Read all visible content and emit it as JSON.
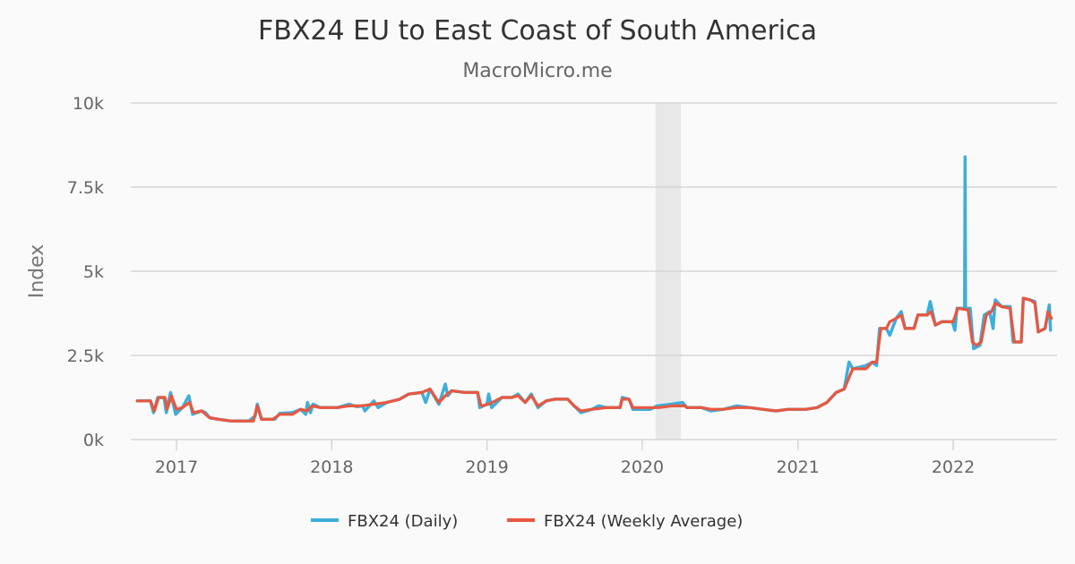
{
  "chart_data": {
    "type": "line",
    "title": "FBX24 EU to East Coast of South America",
    "subtitle": "MacroMicro.me",
    "xlabel": "",
    "ylabel": "Index",
    "ylim": [
      0,
      10000
    ],
    "xlim": [
      "2016-09-20",
      "2022-09-20"
    ],
    "yticks": [
      0,
      2500,
      5000,
      7500,
      10000
    ],
    "ytick_labels": [
      "0k",
      "2.5k",
      "5k",
      "7.5k",
      "10k"
    ],
    "xticks": [
      "2017-01-01",
      "2018-01-01",
      "2019-01-01",
      "2020-01-01",
      "2021-01-01",
      "2022-01-01"
    ],
    "xtick_labels": [
      "2017",
      "2018",
      "2019",
      "2020",
      "2021",
      "2022"
    ],
    "grid": "horizontal",
    "legend_position": "bottom",
    "shaded_period": [
      "2020-02-01",
      "2020-04-01"
    ],
    "colors": {
      "daily": "#3eaedb",
      "weekly": "#e9573f",
      "shade": "#e8e8e8",
      "grid": "#d6d6d6"
    },
    "series": [
      {
        "name": "FBX24 (Daily)",
        "points": [
          [
            "2016-10-01",
            1150
          ],
          [
            "2016-11-01",
            1150
          ],
          [
            "2016-11-08",
            800
          ],
          [
            "2016-11-18",
            1250
          ],
          [
            "2016-12-03",
            1250
          ],
          [
            "2016-12-08",
            800
          ],
          [
            "2016-12-18",
            1400
          ],
          [
            "2016-12-30",
            750
          ],
          [
            "2017-01-15",
            950
          ],
          [
            "2017-01-30",
            1300
          ],
          [
            "2017-02-08",
            750
          ],
          [
            "2017-03-01",
            850
          ],
          [
            "2017-03-10",
            800
          ],
          [
            "2017-03-20",
            650
          ],
          [
            "2017-04-10",
            600
          ],
          [
            "2017-05-10",
            550
          ],
          [
            "2017-06-20",
            550
          ],
          [
            "2017-07-05",
            700
          ],
          [
            "2017-07-10",
            1050
          ],
          [
            "2017-07-20",
            600
          ],
          [
            "2017-08-20",
            600
          ],
          [
            "2017-09-01",
            780
          ],
          [
            "2017-10-01",
            800
          ],
          [
            "2017-10-20",
            900
          ],
          [
            "2017-11-01",
            750
          ],
          [
            "2017-11-05",
            1100
          ],
          [
            "2017-11-12",
            800
          ],
          [
            "2017-11-18",
            1050
          ],
          [
            "2017-12-05",
            950
          ],
          [
            "2018-01-15",
            950
          ],
          [
            "2018-02-10",
            1050
          ],
          [
            "2018-03-01",
            980
          ],
          [
            "2018-03-15",
            1000
          ],
          [
            "2018-03-20",
            850
          ],
          [
            "2018-04-10",
            1150
          ],
          [
            "2018-04-20",
            950
          ],
          [
            "2018-05-10",
            1100
          ],
          [
            "2018-06-10",
            1200
          ],
          [
            "2018-07-01",
            1350
          ],
          [
            "2018-08-01",
            1400
          ],
          [
            "2018-08-10",
            1100
          ],
          [
            "2018-08-20",
            1500
          ],
          [
            "2018-09-10",
            1050
          ],
          [
            "2018-09-25",
            1650
          ],
          [
            "2018-10-01",
            1300
          ],
          [
            "2018-10-10",
            1450
          ],
          [
            "2018-11-10",
            1400
          ],
          [
            "2018-12-10",
            1400
          ],
          [
            "2018-12-15",
            950
          ],
          [
            "2019-01-01",
            1050
          ],
          [
            "2019-01-05",
            1350
          ],
          [
            "2019-01-12",
            950
          ],
          [
            "2019-02-05",
            1250
          ],
          [
            "2019-03-01",
            1250
          ],
          [
            "2019-03-15",
            1350
          ],
          [
            "2019-04-01",
            1100
          ],
          [
            "2019-04-15",
            1350
          ],
          [
            "2019-05-01",
            950
          ],
          [
            "2019-05-20",
            1150
          ],
          [
            "2019-06-10",
            1200
          ],
          [
            "2019-07-10",
            1200
          ],
          [
            "2019-07-25",
            1000
          ],
          [
            "2019-08-10",
            800
          ],
          [
            "2019-09-05",
            900
          ],
          [
            "2019-09-20",
            1000
          ],
          [
            "2019-10-10",
            950
          ],
          [
            "2019-11-10",
            950
          ],
          [
            "2019-11-15",
            1250
          ],
          [
            "2019-12-01",
            1200
          ],
          [
            "2019-12-10",
            900
          ],
          [
            "2020-01-20",
            900
          ],
          [
            "2020-02-05",
            1000
          ],
          [
            "2020-03-10",
            1050
          ],
          [
            "2020-04-05",
            1100
          ],
          [
            "2020-04-15",
            950
          ],
          [
            "2020-05-20",
            950
          ],
          [
            "2020-06-10",
            850
          ],
          [
            "2020-07-10",
            900
          ],
          [
            "2020-08-10",
            1000
          ],
          [
            "2020-09-10",
            950
          ],
          [
            "2020-10-10",
            900
          ],
          [
            "2020-11-10",
            850
          ],
          [
            "2020-12-10",
            900
          ],
          [
            "2021-01-20",
            900
          ],
          [
            "2021-02-15",
            950
          ],
          [
            "2021-03-10",
            1100
          ],
          [
            "2021-04-01",
            1400
          ],
          [
            "2021-04-20",
            1500
          ],
          [
            "2021-05-01",
            2300
          ],
          [
            "2021-05-10",
            2100
          ],
          [
            "2021-06-10",
            2200
          ],
          [
            "2021-06-25",
            2300
          ],
          [
            "2021-07-05",
            2200
          ],
          [
            "2021-07-12",
            3300
          ],
          [
            "2021-07-28",
            3300
          ],
          [
            "2021-08-05",
            3100
          ],
          [
            "2021-08-20",
            3600
          ],
          [
            "2021-09-01",
            3800
          ],
          [
            "2021-09-10",
            3300
          ],
          [
            "2021-10-01",
            3300
          ],
          [
            "2021-10-10",
            3700
          ],
          [
            "2021-11-01",
            3700
          ],
          [
            "2021-11-08",
            4100
          ],
          [
            "2021-11-20",
            3400
          ],
          [
            "2021-12-05",
            3500
          ],
          [
            "2021-12-30",
            3500
          ],
          [
            "2022-01-05",
            3250
          ],
          [
            "2022-01-10",
            3900
          ],
          [
            "2022-01-28",
            3900
          ],
          [
            "2022-01-29",
            8400
          ],
          [
            "2022-01-30",
            3900
          ],
          [
            "2022-02-10",
            3900
          ],
          [
            "2022-02-18",
            2700
          ],
          [
            "2022-03-05",
            2800
          ],
          [
            "2022-03-15",
            3700
          ],
          [
            "2022-03-28",
            3800
          ],
          [
            "2022-04-05",
            3300
          ],
          [
            "2022-04-10",
            4150
          ],
          [
            "2022-04-25",
            3950
          ],
          [
            "2022-05-15",
            3950
          ],
          [
            "2022-05-22",
            2900
          ],
          [
            "2022-06-10",
            2900
          ],
          [
            "2022-06-15",
            4200
          ],
          [
            "2022-07-01",
            4150
          ],
          [
            "2022-07-12",
            4100
          ],
          [
            "2022-07-20",
            3200
          ],
          [
            "2022-08-05",
            3300
          ],
          [
            "2022-08-15",
            4000
          ],
          [
            "2022-08-18",
            3250
          ]
        ]
      },
      {
        "name": "FBX24 (Weekly Average)",
        "points": [
          [
            "2016-10-01",
            1150
          ],
          [
            "2016-11-01",
            1150
          ],
          [
            "2016-11-10",
            850
          ],
          [
            "2016-11-20",
            1250
          ],
          [
            "2016-12-05",
            1250
          ],
          [
            "2016-12-10",
            900
          ],
          [
            "2016-12-20",
            1300
          ],
          [
            "2017-01-01",
            900
          ],
          [
            "2017-01-15",
            950
          ],
          [
            "2017-02-01",
            1100
          ],
          [
            "2017-02-10",
            800
          ],
          [
            "2017-03-01",
            850
          ],
          [
            "2017-03-20",
            650
          ],
          [
            "2017-04-10",
            600
          ],
          [
            "2017-05-10",
            550
          ],
          [
            "2017-06-20",
            550
          ],
          [
            "2017-07-01",
            550
          ],
          [
            "2017-07-10",
            1000
          ],
          [
            "2017-07-20",
            600
          ],
          [
            "2017-08-15",
            600
          ],
          [
            "2017-09-01",
            750
          ],
          [
            "2017-10-01",
            750
          ],
          [
            "2017-10-20",
            900
          ],
          [
            "2017-11-05",
            850
          ],
          [
            "2017-11-15",
            1000
          ],
          [
            "2017-12-05",
            950
          ],
          [
            "2018-01-15",
            950
          ],
          [
            "2018-02-10",
            1000
          ],
          [
            "2018-03-10",
            1000
          ],
          [
            "2018-04-10",
            1050
          ],
          [
            "2018-05-10",
            1100
          ],
          [
            "2018-06-10",
            1200
          ],
          [
            "2018-07-01",
            1350
          ],
          [
            "2018-08-01",
            1400
          ],
          [
            "2018-08-20",
            1500
          ],
          [
            "2018-09-10",
            1100
          ],
          [
            "2018-09-25",
            1300
          ],
          [
            "2018-10-10",
            1450
          ],
          [
            "2018-11-10",
            1400
          ],
          [
            "2018-12-10",
            1400
          ],
          [
            "2018-12-18",
            1000
          ],
          [
            "2019-01-05",
            1050
          ],
          [
            "2019-02-05",
            1250
          ],
          [
            "2019-03-01",
            1250
          ],
          [
            "2019-03-15",
            1300
          ],
          [
            "2019-04-01",
            1100
          ],
          [
            "2019-04-15",
            1300
          ],
          [
            "2019-05-01",
            1000
          ],
          [
            "2019-05-20",
            1150
          ],
          [
            "2019-06-10",
            1200
          ],
          [
            "2019-07-10",
            1200
          ],
          [
            "2019-07-25",
            1000
          ],
          [
            "2019-08-10",
            850
          ],
          [
            "2019-09-05",
            900
          ],
          [
            "2019-10-10",
            950
          ],
          [
            "2019-11-10",
            950
          ],
          [
            "2019-11-15",
            1200
          ],
          [
            "2019-12-01",
            1200
          ],
          [
            "2019-12-10",
            950
          ],
          [
            "2020-01-20",
            950
          ],
          [
            "2020-02-10",
            950
          ],
          [
            "2020-03-10",
            1000
          ],
          [
            "2020-04-10",
            1000
          ],
          [
            "2020-04-15",
            950
          ],
          [
            "2020-05-20",
            950
          ],
          [
            "2020-06-10",
            900
          ],
          [
            "2020-07-10",
            900
          ],
          [
            "2020-08-10",
            950
          ],
          [
            "2020-09-10",
            950
          ],
          [
            "2020-10-10",
            900
          ],
          [
            "2020-11-10",
            850
          ],
          [
            "2020-12-10",
            900
          ],
          [
            "2021-01-20",
            900
          ],
          [
            "2021-02-15",
            950
          ],
          [
            "2021-03-10",
            1100
          ],
          [
            "2021-04-01",
            1400
          ],
          [
            "2021-04-20",
            1500
          ],
          [
            "2021-05-10",
            2100
          ],
          [
            "2021-06-10",
            2100
          ],
          [
            "2021-06-25",
            2300
          ],
          [
            "2021-07-05",
            2300
          ],
          [
            "2021-07-15",
            3300
          ],
          [
            "2021-07-28",
            3300
          ],
          [
            "2021-08-05",
            3500
          ],
          [
            "2021-08-20",
            3600
          ],
          [
            "2021-09-01",
            3700
          ],
          [
            "2021-09-10",
            3300
          ],
          [
            "2021-10-01",
            3300
          ],
          [
            "2021-10-10",
            3700
          ],
          [
            "2021-11-01",
            3700
          ],
          [
            "2021-11-10",
            3800
          ],
          [
            "2021-11-20",
            3400
          ],
          [
            "2021-12-05",
            3500
          ],
          [
            "2022-01-01",
            3500
          ],
          [
            "2022-01-12",
            3900
          ],
          [
            "2022-02-05",
            3850
          ],
          [
            "2022-02-15",
            2900
          ],
          [
            "2022-02-25",
            2800
          ],
          [
            "2022-03-08",
            2900
          ],
          [
            "2022-03-20",
            3700
          ],
          [
            "2022-04-01",
            3800
          ],
          [
            "2022-04-10",
            4050
          ],
          [
            "2022-04-25",
            3950
          ],
          [
            "2022-05-15",
            3900
          ],
          [
            "2022-05-25",
            2900
          ],
          [
            "2022-06-10",
            2900
          ],
          [
            "2022-06-15",
            4200
          ],
          [
            "2022-07-01",
            4150
          ],
          [
            "2022-07-12",
            4050
          ],
          [
            "2022-07-20",
            3200
          ],
          [
            "2022-08-05",
            3300
          ],
          [
            "2022-08-12",
            3800
          ],
          [
            "2022-08-20",
            3600
          ]
        ]
      }
    ]
  }
}
